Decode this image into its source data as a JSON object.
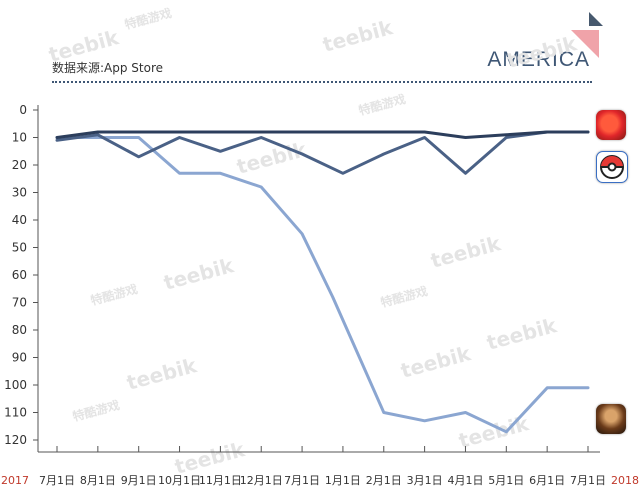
{
  "header": {
    "source": "数据来源:App Store",
    "region": "AMERICA"
  },
  "watermarks": [
    "teebik",
    "特酷游戏"
  ],
  "year_start": "2017",
  "year_end": "2018",
  "app_icons": [
    "candy-crush-icon",
    "pokemon-go-icon",
    "warrior-game-icon"
  ],
  "colors": {
    "navy": "#2c3e5c",
    "slate": "#4a6186",
    "light_blue": "#8ba6d1",
    "accent_red": "#c0392b",
    "axis": "#555555"
  },
  "chart_data": {
    "type": "line",
    "title": "",
    "xlabel": "",
    "ylabel": "",
    "categories": [
      "7月1日",
      "8月1日",
      "9月1日",
      "10月1日",
      "11月1日",
      "12月1日",
      "7月1日",
      "1月1日",
      "2月1日",
      "3月1日",
      "4月1日",
      "5月1日",
      "6月1日",
      "7月1日"
    ],
    "ylim": [
      0,
      120
    ],
    "y_inverted": true,
    "y_ticks": [
      0,
      10,
      20,
      30,
      40,
      50,
      60,
      70,
      80,
      90,
      100,
      110,
      120
    ],
    "grid": false,
    "series": [
      {
        "name": "Candy Crush",
        "color": "#2c3e5c",
        "x": [
          0,
          1,
          2,
          3,
          4,
          5,
          6,
          7,
          8,
          9,
          10,
          11,
          12,
          13
        ],
        "values": [
          10,
          8,
          8,
          8,
          8,
          8,
          8,
          8,
          8,
          8,
          10,
          9,
          8,
          8
        ]
      },
      {
        "name": "Pokemon GO",
        "color": "#4a6186",
        "x": [
          0,
          1,
          2,
          3,
          4,
          5,
          6,
          7,
          8,
          9,
          10,
          11,
          12,
          13
        ],
        "values": [
          11,
          9,
          17,
          10,
          15,
          10,
          16,
          23,
          16,
          10,
          23,
          10,
          8,
          8
        ]
      },
      {
        "name": "Warrior game",
        "color": "#8ba6d1",
        "x": [
          0,
          1,
          2,
          3,
          4,
          5,
          6,
          6.75,
          8,
          9,
          10,
          11,
          12,
          13
        ],
        "values": [
          10,
          10,
          10,
          23,
          23,
          28,
          45,
          68,
          110,
          113,
          110,
          117,
          101,
          101
        ]
      }
    ]
  }
}
